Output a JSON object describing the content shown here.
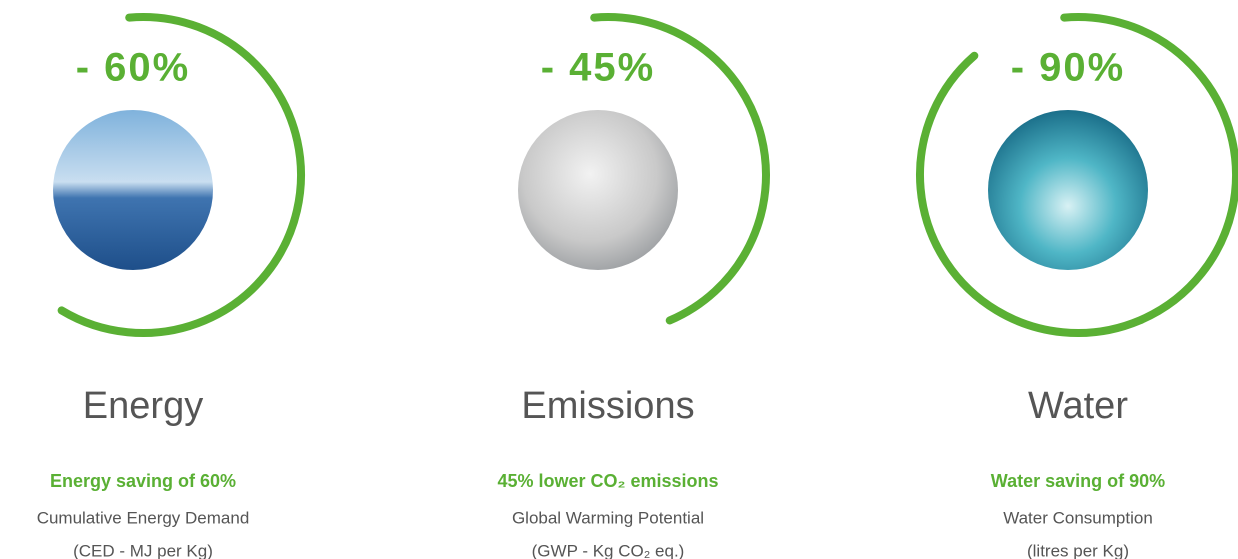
{
  "items": [
    {
      "percent": "- 60%",
      "value": 60,
      "name": "Energy",
      "highlight": "Energy saving of 60%",
      "lines": [
        "Cumulative Energy Demand",
        "(CED - MJ per Kg)"
      ]
    },
    {
      "percent": "- 45%",
      "value": 45,
      "name": "Emissions",
      "highlight": "45% lower CO₂ emissions",
      "lines": [
        "Global Warming Potential",
        "(GWP - Kg CO₂ eq.)"
      ]
    },
    {
      "percent": "- 90%",
      "value": 90,
      "name": "Water",
      "highlight": "Water saving of 90%",
      "lines": [
        "Water Consumption",
        "(litres per Kg)"
      ]
    }
  ]
}
